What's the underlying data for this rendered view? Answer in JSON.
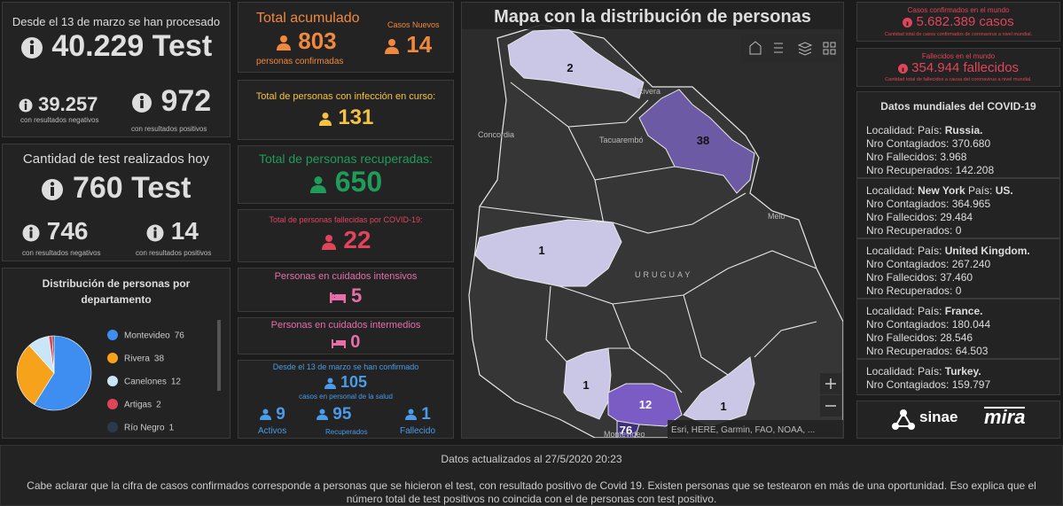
{
  "tests_total": {
    "title": "Desde el 13 de marzo se han procesado",
    "value": "40.229 Test",
    "negative": "39.257",
    "negative_label": "con resultados negativos",
    "positive": "972",
    "positive_label": "con resultados positivos"
  },
  "tests_today": {
    "title": "Cantidad de test realizados hoy",
    "value": "760 Test",
    "negative": "746",
    "negative_label": "con resultados negativos",
    "positive": "14",
    "positive_label": "con resultados positivos"
  },
  "distribution": {
    "type": "pie",
    "title": "Distribución de personas por departamento",
    "categories": [
      "Montevideo",
      "Rivera",
      "Canelones",
      "Artigas",
      "Río Negro"
    ],
    "values": [
      76,
      38,
      12,
      2,
      1
    ],
    "colors": [
      "#3d8ef0",
      "#f7a21b",
      "#c9e6f7",
      "#e0455a",
      "#2a3a4c"
    ]
  },
  "cases": {
    "total_label": "Total acumulado",
    "total": "803",
    "total_sub": "personas confirmadas",
    "new_label": "Casos Nuevos",
    "new": "14"
  },
  "active": {
    "label": "Total de personas con infección en curso:",
    "value": "131"
  },
  "recovered": {
    "label": "Total de personas recuperadas:",
    "value": "650"
  },
  "deceased": {
    "label": "Total de personas fallecidas por COVID-19:",
    "value": "22"
  },
  "icu": {
    "label": "Personas en cuidados intensivos",
    "value": "5"
  },
  "intermediate": {
    "label": "Personas en cuidados intermedios",
    "value": "0"
  },
  "health_staff": {
    "title": "Desde el 13 de marzo se han confirmado",
    "value": "105",
    "subtitle": "casos en personal de la salud",
    "active": "9",
    "active_label": "Activos",
    "recovered": "95",
    "recovered_label": "Recuperados",
    "deceased": "1",
    "deceased_label": "Fallecido"
  },
  "map": {
    "title": "Mapa con la distribución de personas",
    "counts": [
      2,
      38,
      1,
      1,
      12,
      76,
      1
    ],
    "places": [
      "Rivera",
      "Concordia",
      "Tacuarembó",
      "Melo",
      "URUGUAY",
      "Montevideo"
    ],
    "attribution": "Esri, HERE, Garmin, FAO, NOAA, ..."
  },
  "world_cases": {
    "title": "Casos confirmados en el mundo",
    "value": "5.682.389 casos",
    "note": "Cantidad total de casos confirmados de coronavirus a nivel mundial."
  },
  "world_deaths": {
    "title": "Fallecidos en el mundo",
    "value": "354.944 fallecidos",
    "note": "Cantidad total de fallecidos a causa del coronavirus a nivel mundial."
  },
  "world_data": {
    "title": "Datos mundiales del COVID-19",
    "labels": {
      "locality": "Localidad:",
      "country": "País:",
      "infected": "Nro Contagiados:",
      "deaths": "Nro Fallecidos:",
      "recovered": "Nro Recuperados:"
    },
    "entries": [
      {
        "country": "Russia.",
        "infected": "370.680",
        "deaths": "3.968",
        "recovered": "142.208"
      },
      {
        "locality": "New York",
        "country": "US.",
        "infected": "364.965",
        "deaths": "29.484",
        "recovered": "0"
      },
      {
        "country": "United Kingdom.",
        "infected": "267.240",
        "deaths": "37.460",
        "recovered": "0"
      },
      {
        "country": "France.",
        "infected": "180.044",
        "deaths": "28.546",
        "recovered": "64.503"
      },
      {
        "country": "Turkey.",
        "infected": "159.797"
      }
    ]
  },
  "logos": [
    "sinae",
    "mira"
  ],
  "footer": {
    "updated": "Datos actualizados al 27/5/2020 20:23",
    "note": "Cabe aclarar que la cifra de casos confirmados corresponde a personas que se hicieron el test, con resultado positivo de Covid 19. Existen personas que se testearon en más de una oportunidad. Eso explica que el número total de test positivos no coincida con el de personas con test positivo."
  }
}
